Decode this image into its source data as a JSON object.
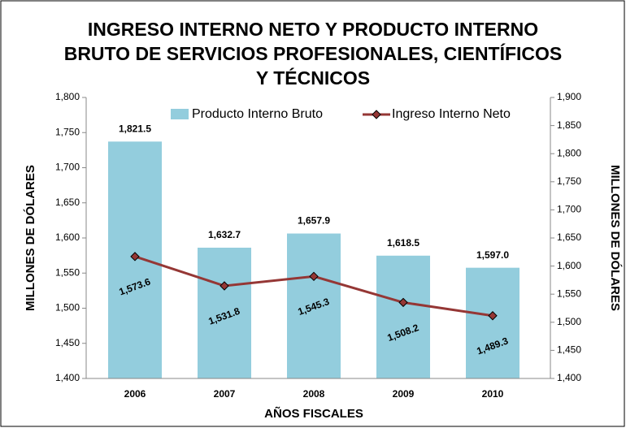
{
  "chart_data": {
    "type": "bar-line",
    "title": [
      "INGRESO INTERNO NETO Y PRODUCTO INTERNO",
      "BRUTO DE SERVICIOS PROFESIONALES, CIENTÍFICOS",
      "Y TÉCNICOS"
    ],
    "x_label": "AÑOS FISCALES",
    "y_label": "MILLONES DE DÓLARES",
    "y2_label": "MILLONES DE DÓLARES",
    "categories": [
      "2006",
      "2007",
      "2008",
      "2009",
      "2010"
    ],
    "series": [
      {
        "name": "Producto Interno Bruto",
        "type": "bar",
        "axis": "y2",
        "color": "#93cddd",
        "values": [
          1821.5,
          1632.7,
          1657.9,
          1618.5,
          1597.0
        ],
        "value_labels": [
          "1,821.5",
          "1,632.7",
          "1,657.9",
          "1,618.5",
          "1,597.0"
        ]
      },
      {
        "name": "Ingreso Interno Neto",
        "type": "line",
        "axis": "y",
        "color": "#953735",
        "values": [
          1573.6,
          1531.8,
          1545.3,
          1508.2,
          1489.3
        ],
        "value_labels": [
          "1,573.6",
          "1,531.8",
          "1,545.3",
          "1,508.2",
          "1,489.3"
        ]
      }
    ],
    "ylim": [
      1400,
      1800
    ],
    "yticks": [
      {
        "value": 1400,
        "label": "1,400"
      },
      {
        "value": 1450,
        "label": "1,450"
      },
      {
        "value": 1500,
        "label": "1,500"
      },
      {
        "value": 1550,
        "label": "1,550"
      },
      {
        "value": 1600,
        "label": "1,600"
      },
      {
        "value": 1650,
        "label": "1,650"
      },
      {
        "value": 1700,
        "label": "1,700"
      },
      {
        "value": 1750,
        "label": "1,750"
      },
      {
        "value": 1800,
        "label": "1,800"
      }
    ],
    "y2lim": [
      1400,
      1900
    ],
    "y2ticks": [
      {
        "value": 1400,
        "label": "1,400"
      },
      {
        "value": 1450,
        "label": "1,450"
      },
      {
        "value": 1500,
        "label": "1,500"
      },
      {
        "value": 1550,
        "label": "1,550"
      },
      {
        "value": 1600,
        "label": "1,600"
      },
      {
        "value": 1650,
        "label": "1,650"
      },
      {
        "value": 1700,
        "label": "1,700"
      },
      {
        "value": 1750,
        "label": "1,750"
      },
      {
        "value": 1800,
        "label": "1,800"
      },
      {
        "value": 1850,
        "label": "1,850"
      },
      {
        "value": 1900,
        "label": "1,900"
      }
    ]
  }
}
